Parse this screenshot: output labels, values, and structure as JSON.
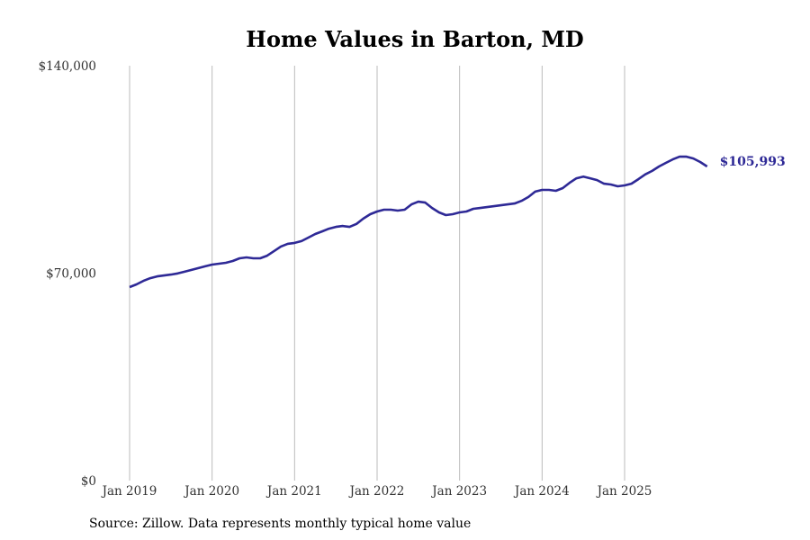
{
  "chart_data": {
    "type": "line",
    "title": "Home Values in Barton, MD",
    "xlabel": "",
    "ylabel": "",
    "ylim": [
      0,
      140000
    ],
    "yticks": [
      0,
      70000,
      140000
    ],
    "ytick_labels": [
      "$0",
      "$70,000",
      "$140,000"
    ],
    "xtick_labels": [
      "Jan 2019",
      "Jan 2020",
      "Jan 2021",
      "Jan 2022",
      "Jan 2023",
      "Jan 2024",
      "Jan 2025"
    ],
    "x_start": "Jan 2019",
    "x_frequency": "monthly",
    "grid": "vertical",
    "line_color": "#2e2996",
    "series": [
      {
        "name": "Typical home value",
        "values": [
          65300,
          66200,
          67400,
          68300,
          68900,
          69200,
          69500,
          69900,
          70500,
          71100,
          71700,
          72300,
          72900,
          73200,
          73500,
          74100,
          75000,
          75300,
          75000,
          75000,
          75900,
          77400,
          79000,
          79900,
          80200,
          80800,
          82000,
          83200,
          84100,
          85000,
          85600,
          85900,
          85600,
          86600,
          88400,
          89900,
          90800,
          91400,
          91400,
          91100,
          91400,
          93200,
          94100,
          93800,
          92000,
          90500,
          89600,
          89900,
          90500,
          90800,
          91700,
          92000,
          92300,
          92600,
          92900,
          93200,
          93500,
          94400,
          95700,
          97500,
          98100,
          98100,
          97800,
          98700,
          100500,
          102000,
          102600,
          102000,
          101400,
          100200,
          99900,
          99300,
          99600,
          100200,
          101700,
          103300,
          104500,
          106000,
          107200,
          108400,
          109300,
          109300,
          108700,
          107500,
          105993
        ]
      }
    ],
    "end_label": "$105,993"
  },
  "source": "Source: Zillow. Data represents monthly typical home value"
}
